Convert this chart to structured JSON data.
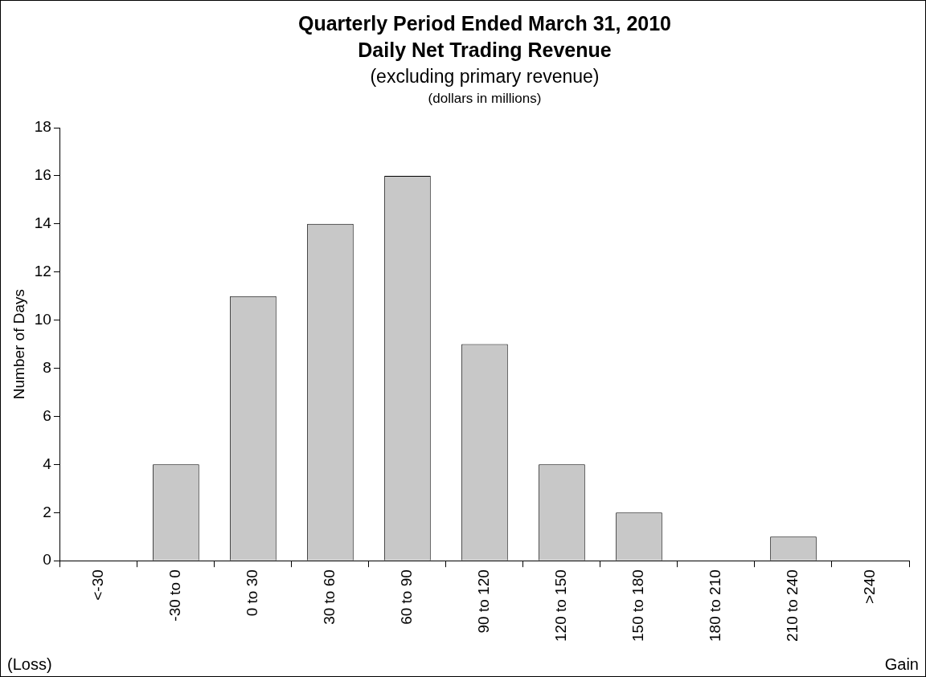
{
  "chart_data": {
    "type": "bar",
    "title": "Quarterly Period Ended March 31, 2010\nDaily Net Trading Revenue",
    "subtitle": "(excluding primary revenue)",
    "annotations": [
      "(dollars in millions)",
      "(Loss)",
      "Gain"
    ],
    "categories": [
      "<-30",
      "-30 to 0",
      "0 to 30",
      "30 to 60",
      "60 to 90",
      "90 to 120",
      "120 to 150",
      "150 to 180",
      "180 to 210",
      "210 to 240",
      ">240"
    ],
    "values": [
      0,
      4,
      11,
      14,
      16,
      9,
      4,
      2,
      0,
      1,
      0
    ],
    "color": "#c8c8c8",
    "ylabel": "Number of Days",
    "ylim": [
      0,
      18
    ],
    "yticks": [
      0,
      2,
      4,
      6,
      8,
      10,
      12,
      14,
      16,
      18
    ],
    "grid": false
  }
}
